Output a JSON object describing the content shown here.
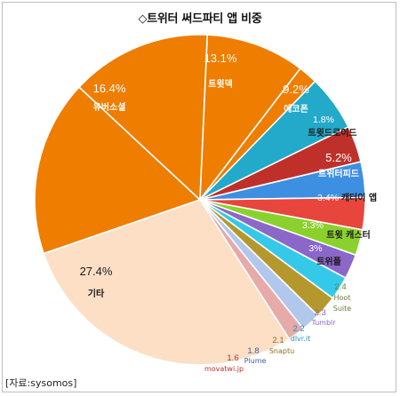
{
  "title": "◇트위터 써드파티 앱 비중",
  "source": "[자료:sysomos]",
  "chart_data": {
    "type": "pie",
    "title": "◇트위터 써드파티 앱 비중",
    "start_angle_deg": 251,
    "slices": [
      {
        "label": "유버소셜",
        "value": 16.4,
        "value_label": "16.4%",
        "color": "#ee7d00"
      },
      {
        "label": "트윗덱",
        "value": 13.1,
        "value_label": "13.1%",
        "color": "#ee7d00"
      },
      {
        "label": "에코폰",
        "value": 9.2,
        "value_label": "9.2%",
        "color": "#ee7d00"
      },
      {
        "label": "트윗드로이드",
        "value": 1.8,
        "value_label": "1.8%",
        "color": "#ee7d00"
      },
      {
        "label": "트위터피드",
        "value": 5.2,
        "value_label": "5.2%",
        "color": "#23a9c9"
      },
      {
        "label": "캐터이 앱",
        "value": 3.4,
        "value_label": "3.4%",
        "color": "#c0302a"
      },
      {
        "label": "트윗 캐스터",
        "value": 3.3,
        "value_label": "3.3%",
        "color": "#3d8fe2"
      },
      {
        "label": "트위플",
        "value": 3.0,
        "value_label": "3%",
        "color": "#e8453c"
      },
      {
        "label": "Hoot Suite",
        "value": 2.4,
        "value_label": "2.4",
        "color": "#8bd12d"
      },
      {
        "label": "Tumblr",
        "value": 2.3,
        "value_label": "2.3",
        "color": "#8a67c8"
      },
      {
        "label": "dlvr.it",
        "value": 2.2,
        "value_label": "2.2",
        "color": "#34c9e8"
      },
      {
        "label": "Snaptu",
        "value": 2.1,
        "value_label": "2.1",
        "color": "#b5982d"
      },
      {
        "label": "Plume",
        "value": 1.8,
        "value_label": "1.8",
        "color": "#b1c8ec"
      },
      {
        "label": "movatwi.jp",
        "value": 1.6,
        "value_label": "1.6",
        "color": "#e6aaa8"
      },
      {
        "label": "기타",
        "value": 27.4,
        "value_label": "27.4%",
        "color": "#fddfc5"
      }
    ]
  }
}
